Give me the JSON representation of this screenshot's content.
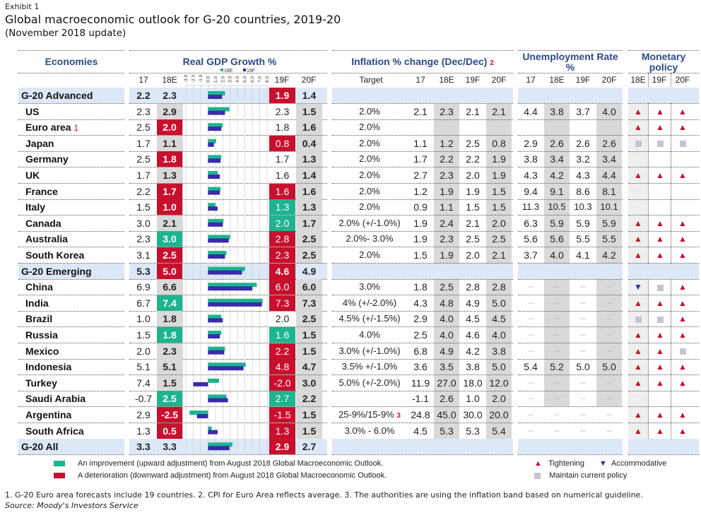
{
  "exhibit": "Exhibit 1",
  "title": "Global macroeconomic outlook for G-20 countries, 2019-20",
  "subtitle": "(November 2018 update)",
  "headers": {
    "economies": "Economies",
    "gdp": "Real GDP Growth %",
    "inflation": "Inflation % change (Dec/Dec)",
    "inflation_note": "2",
    "unemployment": "Unemployment Rate %",
    "monetary": "Monetary policy"
  },
  "subheaders": {
    "gdp": [
      "17",
      "18E",
      "19F",
      "20F"
    ],
    "inflation": [
      "Target",
      "17",
      "18E",
      "19F",
      "20F"
    ],
    "unemployment": [
      "17",
      "18E",
      "19F",
      "20F"
    ],
    "monetary": [
      "18E",
      "19F",
      "20F"
    ]
  },
  "colors": {
    "improvement": "#1db48f",
    "deterioration": "#c8102e",
    "bar_18e": "#1db48f",
    "bar_19f": "#3b2aa8",
    "header_blue": "#2d4a8a",
    "group_band": "#dce8f7",
    "gray_col": "#d9d9d9"
  },
  "chart_data": {
    "type": "bar",
    "orientation": "horizontal",
    "title": "Real GDP Growth %",
    "legend": [
      "18E",
      "19F"
    ],
    "legend_position": "top",
    "xlim": [
      -3.0,
      8.0
    ],
    "ticks": [
      "-3.0",
      "-2.0",
      "-1.0",
      "0.0",
      "1.0",
      "2.0",
      "3.0",
      "4.0",
      "5.0",
      "6.0",
      "7.0",
      "8.0"
    ],
    "grid": true,
    "categories": [
      "G-20 Advanced",
      "US",
      "Euro area",
      "Japan",
      "Germany",
      "UK",
      "France",
      "Italy",
      "Canada",
      "Australia",
      "South Korea",
      "G-20 Emerging",
      "China",
      "India",
      "Brazil",
      "Russia",
      "Mexico",
      "Indonesia",
      "Turkey",
      "Saudi Arabia",
      "Argentina",
      "South Africa",
      "G-20 All"
    ],
    "series": [
      {
        "name": "18E",
        "values": [
          2.3,
          2.9,
          2.0,
          1.1,
          1.8,
          1.3,
          1.7,
          1.0,
          2.1,
          3.0,
          2.5,
          5.0,
          6.6,
          7.4,
          1.8,
          1.8,
          2.3,
          5.1,
          1.5,
          2.5,
          -2.5,
          0.5,
          3.3
        ]
      },
      {
        "name": "19F",
        "values": [
          1.9,
          2.3,
          1.8,
          0.8,
          1.7,
          1.6,
          1.6,
          1.3,
          2.0,
          2.8,
          2.3,
          4.6,
          6.0,
          7.3,
          2.0,
          1.6,
          2.2,
          4.8,
          -2.0,
          2.7,
          -1.5,
          1.3,
          2.9
        ]
      }
    ]
  },
  "rows": [
    {
      "name": "G-20 Advanced",
      "group": true,
      "gdp": [
        "2.2",
        "2.3",
        "1.9",
        "1.4"
      ],
      "gdp_flag": [
        "",
        "",
        "red",
        ""
      ],
      "target": "",
      "infl": [
        "",
        "",
        "",
        ""
      ],
      "unemp": [
        "",
        "",
        "",
        ""
      ],
      "mp": [
        "",
        "",
        ""
      ]
    },
    {
      "name": "US",
      "note": "",
      "gdp": [
        "2.3",
        "2.9",
        "2.3",
        "1.5"
      ],
      "gdp_flag": [
        "",
        "",
        "",
        ""
      ],
      "target": "2.0%",
      "infl": [
        "2.1",
        "2.3",
        "2.1",
        "2.1"
      ],
      "unemp": [
        "4.4",
        "3.8",
        "3.7",
        "4.0"
      ],
      "mp": [
        "up",
        "up",
        "up"
      ]
    },
    {
      "name": "Euro area",
      "note": "1",
      "gdp": [
        "2.5",
        "2.0",
        "1.8",
        "1.6"
      ],
      "gdp_flag": [
        "",
        "red",
        "",
        ""
      ],
      "target": "2.0%",
      "infl": [
        "",
        "",
        "",
        ""
      ],
      "unemp": [
        "",
        "",
        "",
        ""
      ],
      "mp": [
        "up",
        "up",
        "up"
      ]
    },
    {
      "name": "Japan",
      "gdp": [
        "1.7",
        "1.1",
        "0.8",
        "0.4"
      ],
      "gdp_flag": [
        "",
        "",
        "red",
        ""
      ],
      "target": "2.0%",
      "infl": [
        "1.1",
        "1.2",
        "2.5",
        "0.8"
      ],
      "unemp": [
        "2.9",
        "2.6",
        "2.6",
        "2.6"
      ],
      "mp": [
        "sq",
        "sq",
        "sq"
      ]
    },
    {
      "name": "Germany",
      "gdp": [
        "2.5",
        "1.8",
        "1.7",
        "1.3"
      ],
      "gdp_flag": [
        "",
        "red",
        "",
        ""
      ],
      "target": "2.0%",
      "infl": [
        "1.7",
        "2.2",
        "2.2",
        "1.9"
      ],
      "unemp": [
        "3.8",
        "3.4",
        "3.2",
        "3.4"
      ],
      "mp": [
        "",
        "",
        ""
      ]
    },
    {
      "name": "UK",
      "gdp": [
        "1.7",
        "1.3",
        "1.6",
        "1.4"
      ],
      "gdp_flag": [
        "",
        "",
        "",
        ""
      ],
      "target": "2.0%",
      "infl": [
        "2.7",
        "2.3",
        "2.0",
        "1.9"
      ],
      "unemp": [
        "4.3",
        "4.2",
        "4.3",
        "4.4"
      ],
      "mp": [
        "up",
        "up",
        "up"
      ]
    },
    {
      "name": "France",
      "gdp": [
        "2.2",
        "1.7",
        "1.6",
        "1.6"
      ],
      "gdp_flag": [
        "",
        "red",
        "red",
        ""
      ],
      "target": "2.0%",
      "infl": [
        "1.2",
        "1.9",
        "1.9",
        "1.5"
      ],
      "unemp": [
        "9.4",
        "9.1",
        "8.6",
        "8.1"
      ],
      "mp": [
        "",
        "",
        ""
      ]
    },
    {
      "name": "Italy",
      "gdp": [
        "1.5",
        "1.0",
        "1.3",
        "1.3"
      ],
      "gdp_flag": [
        "",
        "red",
        "green",
        ""
      ],
      "target": "2.0%",
      "infl": [
        "0.9",
        "1.1",
        "1.5",
        "1.5"
      ],
      "unemp": [
        "11.3",
        "10.5",
        "10.3",
        "10.1"
      ],
      "mp": [
        "",
        "",
        ""
      ]
    },
    {
      "name": "Canada",
      "gdp": [
        "3.0",
        "2.1",
        "2.0",
        "1.7"
      ],
      "gdp_flag": [
        "",
        "",
        "green",
        ""
      ],
      "target": "2.0% (+/-1.0%)",
      "infl": [
        "1.9",
        "2.4",
        "2.1",
        "2.0"
      ],
      "unemp": [
        "6.3",
        "5.9",
        "5.9",
        "5.9"
      ],
      "mp": [
        "up",
        "up",
        "up"
      ]
    },
    {
      "name": "Australia",
      "gdp": [
        "2.3",
        "3.0",
        "2.8",
        "2.5"
      ],
      "gdp_flag": [
        "",
        "green",
        "red",
        ""
      ],
      "target": "2.0%- 3.0%",
      "infl": [
        "1.9",
        "2.3",
        "2.5",
        "2.5"
      ],
      "unemp": [
        "5.6",
        "5.6",
        "5.5",
        "5.5"
      ],
      "mp": [
        "up",
        "up",
        "up"
      ]
    },
    {
      "name": "South Korea",
      "gdp": [
        "3.1",
        "2.5",
        "2.3",
        "2.5"
      ],
      "gdp_flag": [
        "",
        "red",
        "red",
        ""
      ],
      "target": "2.0%",
      "infl": [
        "1.5",
        "1.9",
        "2.0",
        "2.1"
      ],
      "unemp": [
        "3.7",
        "4.0",
        "4.1",
        "4.2"
      ],
      "mp": [
        "up",
        "up",
        "up"
      ]
    },
    {
      "name": "G-20 Emerging",
      "group": true,
      "gdp": [
        "5.3",
        "5.0",
        "4.6",
        "4.9"
      ],
      "gdp_flag": [
        "",
        "red",
        "red",
        ""
      ],
      "target": "",
      "infl": [
        "",
        "",
        "",
        ""
      ],
      "unemp": [
        "",
        "",
        "",
        ""
      ],
      "mp": [
        "",
        "",
        ""
      ]
    },
    {
      "name": "China",
      "gdp": [
        "6.9",
        "6.6",
        "6.0",
        "6.0"
      ],
      "gdp_flag": [
        "",
        "",
        "red",
        ""
      ],
      "target": "3.0%",
      "infl": [
        "1.8",
        "2.5",
        "2.8",
        "2.8"
      ],
      "unemp": [
        "--",
        "--",
        "--",
        "--"
      ],
      "mp": [
        "down",
        "sq",
        "up"
      ]
    },
    {
      "name": "India",
      "gdp": [
        "6.7",
        "7.4",
        "7.3",
        "7.3"
      ],
      "gdp_flag": [
        "",
        "green",
        "red",
        ""
      ],
      "target": "4% (+/-2.0%)",
      "infl": [
        "4.3",
        "4.8",
        "4.9",
        "5.0"
      ],
      "unemp": [
        "--",
        "--",
        "--",
        "--"
      ],
      "mp": [
        "up",
        "up",
        "up"
      ]
    },
    {
      "name": "Brazil",
      "gdp": [
        "1.0",
        "1.8",
        "2.0",
        "2.5"
      ],
      "gdp_flag": [
        "",
        "",
        "",
        ""
      ],
      "target": "4.5% (+/-1.5%)",
      "infl": [
        "2.9",
        "4.0",
        "4.5",
        "4.5"
      ],
      "unemp": [
        "--",
        "--",
        "--",
        "--"
      ],
      "mp": [
        "sq",
        "sq",
        "up"
      ]
    },
    {
      "name": "Russia",
      "gdp": [
        "1.5",
        "1.8",
        "1.6",
        "1.5"
      ],
      "gdp_flag": [
        "",
        "green",
        "green",
        ""
      ],
      "target": "4.0%",
      "infl": [
        "2.5",
        "4.0",
        "4.6",
        "4.0"
      ],
      "unemp": [
        "--",
        "--",
        "--",
        "--"
      ],
      "mp": [
        "up",
        "up",
        "up"
      ]
    },
    {
      "name": "Mexico",
      "gdp": [
        "2.0",
        "2.3",
        "2.2",
        "1.5"
      ],
      "gdp_flag": [
        "",
        "",
        "red",
        ""
      ],
      "target": "3.0% (+/-1.0%)",
      "infl": [
        "6.8",
        "4.9",
        "4.2",
        "3.8"
      ],
      "unemp": [
        "--",
        "--",
        "--",
        "--"
      ],
      "mp": [
        "up",
        "up",
        "sq"
      ]
    },
    {
      "name": "Indonesia",
      "gdp": [
        "5.1",
        "5.1",
        "4.8",
        "4.7"
      ],
      "gdp_flag": [
        "",
        "",
        "red",
        ""
      ],
      "target": "3.5% +/-1.0%",
      "infl": [
        "3.6",
        "3.5",
        "3.8",
        "5.0"
      ],
      "unemp": [
        "5.4",
        "5.2",
        "5.0",
        "5.0"
      ],
      "mp": [
        "up",
        "up",
        "up"
      ]
    },
    {
      "name": "Turkey",
      "gdp": [
        "7.4",
        "1.5",
        "-2.0",
        "3.0"
      ],
      "gdp_flag": [
        "",
        "",
        "red",
        ""
      ],
      "target": "5.0% (+/-2.0%)",
      "infl": [
        "11.9",
        "27.0",
        "18.0",
        "12.0"
      ],
      "unemp": [
        "--",
        "--",
        "--",
        "--"
      ],
      "mp": [
        "up",
        "up",
        "up"
      ]
    },
    {
      "name": "Saudi Arabia",
      "gdp": [
        "-0.7",
        "2.5",
        "2.7",
        "2.2"
      ],
      "gdp_flag": [
        "",
        "green",
        "green",
        ""
      ],
      "target": "",
      "infl": [
        "-1.1",
        "2.6",
        "1.0",
        "2.0"
      ],
      "unemp": [
        "--",
        "--",
        "--",
        "--"
      ],
      "mp": [
        "",
        "",
        ""
      ]
    },
    {
      "name": "Argentina",
      "gdp": [
        "2.9",
        "-2.5",
        "-1.5",
        "1.5"
      ],
      "gdp_flag": [
        "",
        "red",
        "red",
        ""
      ],
      "target": "25-9%/15-9%",
      "target_note": "3",
      "infl": [
        "24.8",
        "45.0",
        "30.0",
        "20.0"
      ],
      "unemp": [
        "--",
        "--",
        "--",
        "--"
      ],
      "mp": [
        "up",
        "up",
        "up"
      ]
    },
    {
      "name": "South Africa",
      "gdp": [
        "1.3",
        "0.5",
        "1.3",
        "1.5"
      ],
      "gdp_flag": [
        "",
        "red",
        "red",
        ""
      ],
      "target": "3.0% - 6.0%",
      "infl": [
        "4.5",
        "5.3",
        "5.3",
        "5.4"
      ],
      "unemp": [
        "--",
        "--",
        "--",
        "--"
      ],
      "mp": [
        "up",
        "up",
        "up"
      ]
    },
    {
      "name": "G-20 All",
      "group": true,
      "gdp": [
        "3.3",
        "3.3",
        "2.9",
        "2.7"
      ],
      "gdp_flag": [
        "",
        "",
        "red",
        ""
      ],
      "target": "",
      "infl": [
        "",
        "",
        "",
        ""
      ],
      "unemp": [
        "",
        "",
        "",
        ""
      ],
      "mp": [
        "",
        "",
        ""
      ]
    }
  ],
  "legend": {
    "improvement": "An improvement (upward adjustment) from August 2018 Global Macroeconomic Outlook.",
    "deterioration": "A deterioration (downward adjustment) from August 2018 Global Macroeconomic Outlook.",
    "tightening": "Tightening",
    "accommodative": "Accommodative",
    "maintain": "Maintain current policy"
  },
  "footnote": "1. G-20 Euro area forecasts include 19 countries. 2. CPI for Euro Area reflects average. 3. The authorities are using the inflation band based on numerical guideline.",
  "source": "Source: Moody's Investors Service"
}
